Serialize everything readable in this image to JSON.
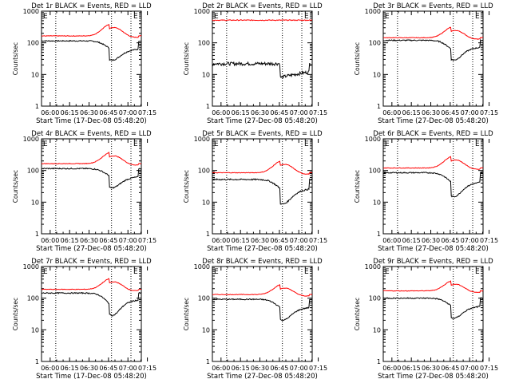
{
  "chart_data": [
    {
      "type": "line",
      "title": "Det 1r BLACK = Events, RED = LLD",
      "xlabel": "Start Time (17-Dec-08 05:48:20)",
      "ylabel": "Counts/sec",
      "yscale": "log",
      "ylim": [
        1,
        1000
      ],
      "yticks": [
        "1",
        "10",
        "100",
        "1000"
      ],
      "xticks": [
        "06:00",
        "06:15",
        "06:30",
        "06:45",
        "07:00",
        "07:15"
      ],
      "xlim_minutes": [
        5,
        82
      ],
      "markers": [
        {
          "at_minutes": 16,
          "label": ""
        },
        {
          "at_minutes": 59,
          "label": "E"
        },
        {
          "at_minutes": 74,
          "label": ""
        }
      ],
      "corner_label": "E",
      "series": [
        {
          "color": "#000000",
          "profile": {
            "base": 115,
            "peak": 65,
            "dip": 0.55,
            "ramp": 1.3,
            "noise": 0.04
          }
        },
        {
          "color": "#ff0000",
          "profile": {
            "base": 165,
            "peak": 410,
            "dip": 0.9,
            "ramp": 1.25,
            "noise": 0.02
          }
        }
      ]
    },
    {
      "type": "line",
      "title": "Det 2r BLACK = Events, RED = LLD",
      "xlabel": "Start Time (27-Dec-08 05:48:20)",
      "ylabel": "Counts/sec",
      "yscale": "log",
      "ylim": [
        1,
        1000
      ],
      "yticks": [
        "1",
        "10",
        "100",
        "1000"
      ],
      "xticks": [
        "06:00",
        "06:15",
        "06:30",
        "06:45",
        "07:00",
        "07:15"
      ],
      "xlim_minutes": [
        5,
        82
      ],
      "markers": [
        {
          "at_minutes": 16,
          "label": ""
        },
        {
          "at_minutes": 59,
          "label": "E"
        },
        {
          "at_minutes": 74,
          "label": ""
        }
      ],
      "corner_label": "E",
      "series": [
        {
          "color": "#000000",
          "profile": {
            "base": 22,
            "peak": 22,
            "dip": 0.55,
            "ramp": 1.5,
            "noise": 0.12
          }
        },
        {
          "color": "#ff0000",
          "profile": {
            "base": 520,
            "peak": 520,
            "dip": 1,
            "ramp": 1,
            "noise": 0.03
          }
        }
      ]
    },
    {
      "type": "line",
      "title": "Det 3r BLACK = Events, RED = LLD",
      "xlabel": "Start Time (27-Dec-08 05:48:20)",
      "ylabel": "Counts/sec",
      "yscale": "log",
      "ylim": [
        1,
        1000
      ],
      "yticks": [
        "1",
        "10",
        "100",
        "1000"
      ],
      "xticks": [
        "06:00",
        "06:15",
        "06:30",
        "06:45",
        "07:00",
        "07:15"
      ],
      "xlim_minutes": [
        5,
        82
      ],
      "markers": [
        {
          "at_minutes": 16,
          "label": ""
        },
        {
          "at_minutes": 59,
          "label": "E"
        },
        {
          "at_minutes": 74,
          "label": ""
        }
      ],
      "corner_label": "E",
      "series": [
        {
          "color": "#000000",
          "profile": {
            "base": 120,
            "peak": 60,
            "dip": 0.6,
            "ramp": 1.3,
            "noise": 0.04
          }
        },
        {
          "color": "#ff0000",
          "profile": {
            "base": 145,
            "peak": 330,
            "dip": 0.9,
            "ramp": 1.25,
            "noise": 0.02
          }
        }
      ]
    },
    {
      "type": "line",
      "title": "Det 4r BLACK = Events, RED = LLD",
      "xlabel": "Start Time (27-Dec-08 05:48:20)",
      "ylabel": "Counts/sec",
      "yscale": "log",
      "ylim": [
        1,
        1000
      ],
      "yticks": [
        "1",
        "10",
        "100",
        "1000"
      ],
      "xticks": [
        "06:00",
        "06:15",
        "06:30",
        "06:45",
        "07:00",
        "07:15"
      ],
      "xlim_minutes": [
        5,
        82
      ],
      "markers": [
        {
          "at_minutes": 16,
          "label": ""
        },
        {
          "at_minutes": 59,
          "label": "E"
        },
        {
          "at_minutes": 74,
          "label": ""
        }
      ],
      "corner_label": "E",
      "series": [
        {
          "color": "#000000",
          "profile": {
            "base": 115,
            "peak": 65,
            "dip": 0.55,
            "ramp": 1.3,
            "noise": 0.04
          }
        },
        {
          "color": "#ff0000",
          "profile": {
            "base": 165,
            "peak": 390,
            "dip": 0.9,
            "ramp": 1.25,
            "noise": 0.02
          }
        }
      ]
    },
    {
      "type": "line",
      "title": "Det 5r BLACK = Events, RED = LLD",
      "xlabel": "Start Time (27-Dec-08 05:48:20)",
      "ylabel": "Counts/sec",
      "yscale": "log",
      "ylim": [
        1,
        1000
      ],
      "yticks": [
        "1",
        "10",
        "100",
        "1000"
      ],
      "xticks": [
        "06:00",
        "06:15",
        "06:30",
        "06:45",
        "07:00",
        "07:15"
      ],
      "xlim_minutes": [
        5,
        82
      ],
      "markers": [
        {
          "at_minutes": 16,
          "label": ""
        },
        {
          "at_minutes": 59,
          "label": "E"
        },
        {
          "at_minutes": 74,
          "label": ""
        }
      ],
      "corner_label": "E",
      "series": [
        {
          "color": "#000000",
          "profile": {
            "base": 52,
            "peak": 25,
            "dip": 0.5,
            "ramp": 1.5,
            "noise": 0.05
          }
        },
        {
          "color": "#ff0000",
          "profile": {
            "base": 85,
            "peak": 210,
            "dip": 0.9,
            "ramp": 1.25,
            "noise": 0.02
          }
        }
      ]
    },
    {
      "type": "line",
      "title": "Det 6r BLACK = Events, RED = LLD",
      "xlabel": "Start Time (27-Dec-08 05:48:20)",
      "ylabel": "Counts/sec",
      "yscale": "log",
      "ylim": [
        1,
        1000
      ],
      "yticks": [
        "1",
        "10",
        "100",
        "1000"
      ],
      "xticks": [
        "06:00",
        "06:15",
        "06:30",
        "06:45",
        "07:00",
        "07:15"
      ],
      "xlim_minutes": [
        5,
        82
      ],
      "markers": [
        {
          "at_minutes": 16,
          "label": ""
        },
        {
          "at_minutes": 59,
          "label": "E"
        },
        {
          "at_minutes": 74,
          "label": ""
        }
      ],
      "corner_label": "E",
      "series": [
        {
          "color": "#000000",
          "profile": {
            "base": 85,
            "peak": 40,
            "dip": 0.5,
            "ramp": 1.4,
            "noise": 0.04
          }
        },
        {
          "color": "#ff0000",
          "profile": {
            "base": 120,
            "peak": 290,
            "dip": 0.9,
            "ramp": 1.25,
            "noise": 0.02
          }
        }
      ]
    },
    {
      "type": "line",
      "title": "Det 7r BLACK = Events, RED = LLD",
      "xlabel": "Start Time (17-Dec-08 05:48:20)",
      "ylabel": "Counts/sec",
      "yscale": "log",
      "ylim": [
        1,
        1000
      ],
      "yticks": [
        "1",
        "10",
        "100",
        "1000"
      ],
      "xticks": [
        "06:00",
        "06:15",
        "06:30",
        "06:45",
        "07:00",
        "07:15"
      ],
      "xlim_minutes": [
        5,
        82
      ],
      "markers": [
        {
          "at_minutes": 16,
          "label": ""
        },
        {
          "at_minutes": 59,
          "label": "E"
        },
        {
          "at_minutes": 74,
          "label": ""
        }
      ],
      "corner_label": "E",
      "series": [
        {
          "color": "#000000",
          "profile": {
            "base": 145,
            "peak": 60,
            "dip": 0.6,
            "ramp": 1.3,
            "noise": 0.04
          }
        },
        {
          "color": "#ff0000",
          "profile": {
            "base": 190,
            "peak": 440,
            "dip": 0.9,
            "ramp": 1.25,
            "noise": 0.02
          }
        }
      ]
    },
    {
      "type": "line",
      "title": "Det 8r BLACK = Events, RED = LLD",
      "xlabel": "Start Time (27-Dec-08 05:48:20)",
      "ylabel": "Counts/sec",
      "yscale": "log",
      "ylim": [
        1,
        1000
      ],
      "yticks": [
        "1",
        "10",
        "100",
        "1000"
      ],
      "xticks": [
        "06:00",
        "06:15",
        "06:30",
        "06:45",
        "07:00",
        "07:15"
      ],
      "xlim_minutes": [
        5,
        82
      ],
      "markers": [
        {
          "at_minutes": 16,
          "label": ""
        },
        {
          "at_minutes": 59,
          "label": "E"
        },
        {
          "at_minutes": 74,
          "label": ""
        }
      ],
      "corner_label": "E",
      "series": [
        {
          "color": "#000000",
          "profile": {
            "base": 92,
            "peak": 48,
            "dip": 0.55,
            "ramp": 1.35,
            "noise": 0.04
          }
        },
        {
          "color": "#ff0000",
          "profile": {
            "base": 130,
            "peak": 280,
            "dip": 0.9,
            "ramp": 1.25,
            "noise": 0.02
          }
        }
      ]
    },
    {
      "type": "line",
      "title": "Det 9r BLACK = Events, RED = LLD",
      "xlabel": "Start Time (27-Dec-08 05:48:20)",
      "ylabel": "Counts/sec",
      "yscale": "log",
      "ylim": [
        1,
        1000
      ],
      "yticks": [
        "1",
        "10",
        "100",
        "1000"
      ],
      "xticks": [
        "06:00",
        "06:15",
        "06:30",
        "06:45",
        "07:00",
        "07:15"
      ],
      "xlim_minutes": [
        5,
        82
      ],
      "markers": [
        {
          "at_minutes": 16,
          "label": ""
        },
        {
          "at_minutes": 59,
          "label": "E"
        },
        {
          "at_minutes": 74,
          "label": ""
        }
      ],
      "corner_label": "E",
      "series": [
        {
          "color": "#000000",
          "profile": {
            "base": 100,
            "peak": 55,
            "dip": 0.55,
            "ramp": 1.35,
            "noise": 0.04
          }
        },
        {
          "color": "#ff0000",
          "profile": {
            "base": 170,
            "peak": 370,
            "dip": 0.9,
            "ramp": 1.25,
            "noise": 0.02
          }
        }
      ]
    }
  ]
}
